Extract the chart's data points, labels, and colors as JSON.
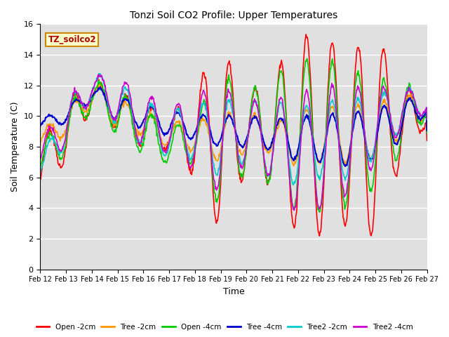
{
  "title": "Tonzi Soil CO2 Profile: Upper Temperatures",
  "xlabel": "Time",
  "ylabel": "Soil Temperature (C)",
  "ylim": [
    0,
    16
  ],
  "yticks": [
    0,
    2,
    4,
    6,
    8,
    10,
    12,
    14,
    16
  ],
  "xtick_labels": [
    "Feb 12",
    "Feb 13",
    "Feb 14",
    "Feb 15",
    "Feb 16",
    "Feb 17",
    "Feb 18",
    "Feb 19",
    "Feb 20",
    "Feb 21",
    "Feb 22",
    "Feb 23",
    "Feb 24",
    "Feb 25",
    "Feb 26",
    "Feb 27"
  ],
  "series": {
    "Open -2cm": {
      "color": "#ff0000",
      "lw": 1.2
    },
    "Tree -2cm": {
      "color": "#ff9900",
      "lw": 1.2
    },
    "Open -4cm": {
      "color": "#00cc00",
      "lw": 1.2
    },
    "Tree -4cm": {
      "color": "#0000cc",
      "lw": 1.5
    },
    "Tree2 -2cm": {
      "color": "#00cccc",
      "lw": 1.2
    },
    "Tree2 -4cm": {
      "color": "#cc00cc",
      "lw": 1.2
    }
  },
  "background_color": "#e0e0e0",
  "annotation_text": "TZ_soilco2",
  "annotation_bg": "#ffffcc",
  "annotation_border": "#cc8800"
}
